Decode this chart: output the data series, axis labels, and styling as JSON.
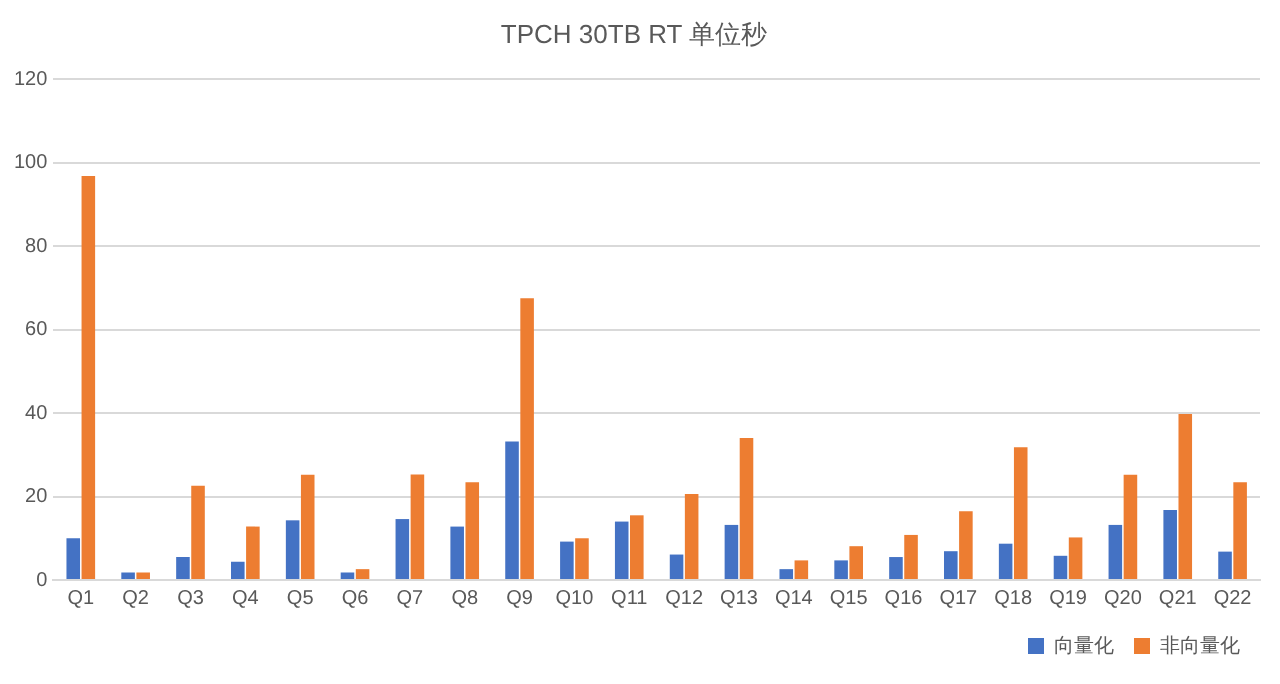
{
  "chart_data": {
    "type": "bar",
    "title": "TPCH 30TB RT 单位秒",
    "categories": [
      "Q1",
      "Q2",
      "Q3",
      "Q4",
      "Q5",
      "Q6",
      "Q7",
      "Q8",
      "Q9",
      "Q10",
      "Q11",
      "Q12",
      "Q13",
      "Q14",
      "Q15",
      "Q16",
      "Q17",
      "Q18",
      "Q19",
      "Q20",
      "Q21",
      "Q22"
    ],
    "series": [
      {
        "name": "向量化",
        "color": "#4472c4",
        "values": [
          10,
          1.8,
          5.5,
          4.4,
          14.3,
          1.8,
          14.6,
          12.8,
          33.2,
          9.2,
          14,
          6.1,
          13.2,
          2.6,
          4.7,
          5.5,
          6.9,
          8.7,
          5.8,
          13.2,
          16.8,
          6.8
        ]
      },
      {
        "name": "非向量化",
        "color": "#ed7d31",
        "values": [
          96.8,
          1.8,
          22.6,
          12.8,
          25.2,
          2.6,
          25.3,
          23.4,
          67.5,
          10,
          15.5,
          20.6,
          34,
          4.7,
          8.1,
          10.8,
          16.5,
          31.8,
          10.2,
          25.2,
          39.8,
          23.4
        ]
      }
    ],
    "ylim": [
      0,
      120
    ],
    "yticks": [
      0,
      20,
      40,
      60,
      80,
      100,
      120
    ],
    "grid": "y",
    "legend": "bottom"
  }
}
